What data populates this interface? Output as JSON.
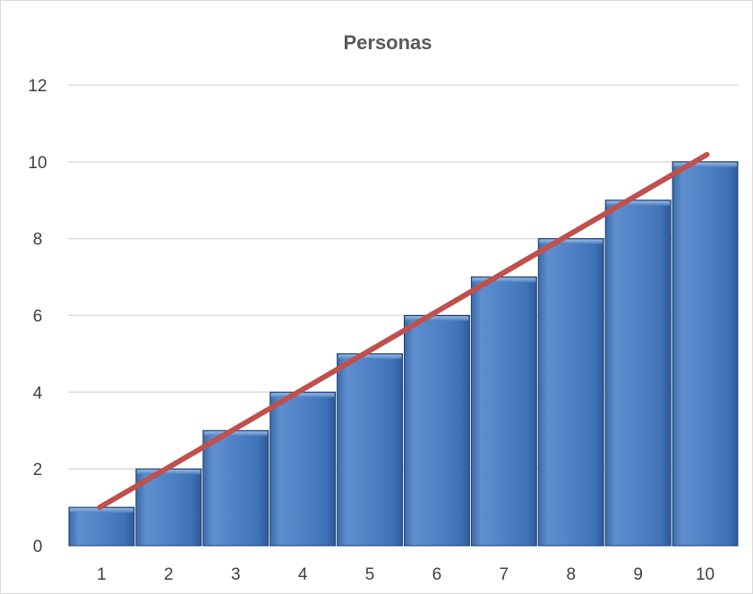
{
  "chart_data": {
    "type": "bar",
    "title": "Personas",
    "xlabel": "",
    "ylabel": "",
    "categories": [
      "1",
      "2",
      "3",
      "4",
      "5",
      "6",
      "7",
      "8",
      "9",
      "10"
    ],
    "series": [
      {
        "values": [
          1,
          2,
          3,
          4,
          5,
          6,
          7,
          8,
          9,
          10
        ]
      }
    ],
    "trendline": {
      "type": "linear",
      "color": "#c0504d"
    },
    "ylim": [
      0,
      12
    ],
    "yticks": [
      "0",
      "2",
      "4",
      "6",
      "8",
      "10",
      "12"
    ],
    "grid": true,
    "legend": "none",
    "colors": {
      "bar": "#4f81bd",
      "bar_edge": "#1f3f6e",
      "trendline": "#c0504d",
      "grid": "#d9d9d9"
    }
  }
}
